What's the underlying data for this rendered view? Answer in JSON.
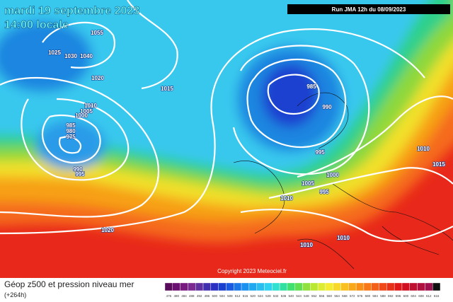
{
  "header": {
    "date": "mardi 19 septembre 2023",
    "time": "14:00 locale",
    "run": "Run JMA 12h du 08/09/2023"
  },
  "isobar_labels": [
    "1055",
    "1025",
    "1030",
    "1040",
    "1020",
    "1015",
    "1010",
    "1005",
    "1000",
    "985",
    "980",
    "975",
    "990",
    "995",
    "985",
    "990",
    "995",
    "1000",
    "1005",
    "995",
    "1010",
    "1010",
    "1015",
    "1020",
    "1010",
    "1010"
  ],
  "footer": {
    "title": "Géop z500 et pression niveau mer",
    "lead": "(+264h)",
    "copyright": "Copyright 2023 Meteociel.fr"
  },
  "scale": {
    "labels": [
      "476",
      "480",
      "484",
      "488",
      "492",
      "496",
      "500",
      "504",
      "508",
      "512",
      "516",
      "520",
      "524",
      "528",
      "532",
      "536",
      "540",
      "544",
      "548",
      "552",
      "556",
      "560",
      "564",
      "568",
      "572",
      "576",
      "580",
      "584",
      "588",
      "592",
      "596",
      "600",
      "604",
      "608",
      "612",
      "616"
    ]
  }
}
